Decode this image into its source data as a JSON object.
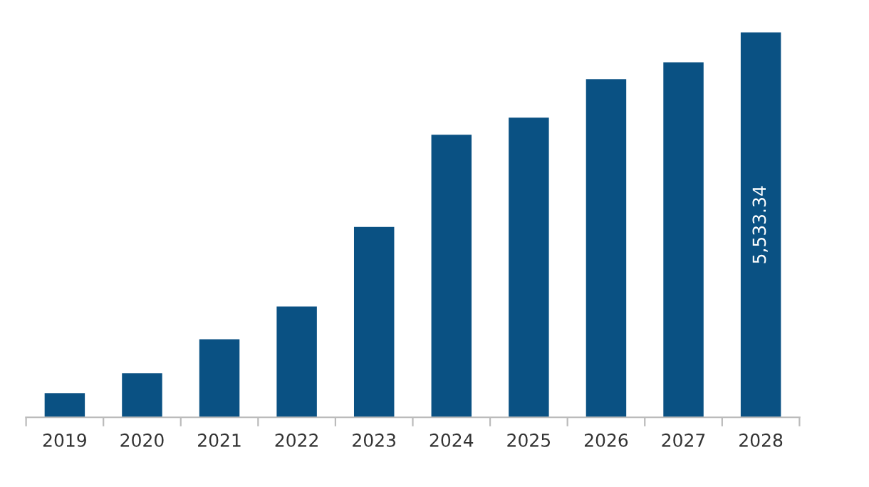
{
  "chart_data": {
    "type": "bar",
    "categories": [
      "2019",
      "2020",
      "2021",
      "2022",
      "2023",
      "2024",
      "2025",
      "2026",
      "2027",
      "2028"
    ],
    "values": [
      347,
      633,
      1123,
      1593,
      2736,
      4063,
      4308,
      4860,
      5104,
      5533.34
    ],
    "value_labels": [
      null,
      null,
      null,
      null,
      null,
      null,
      null,
      null,
      null,
      "5,533.34"
    ],
    "color": "#0a5183",
    "grid": false,
    "legend": false
  }
}
